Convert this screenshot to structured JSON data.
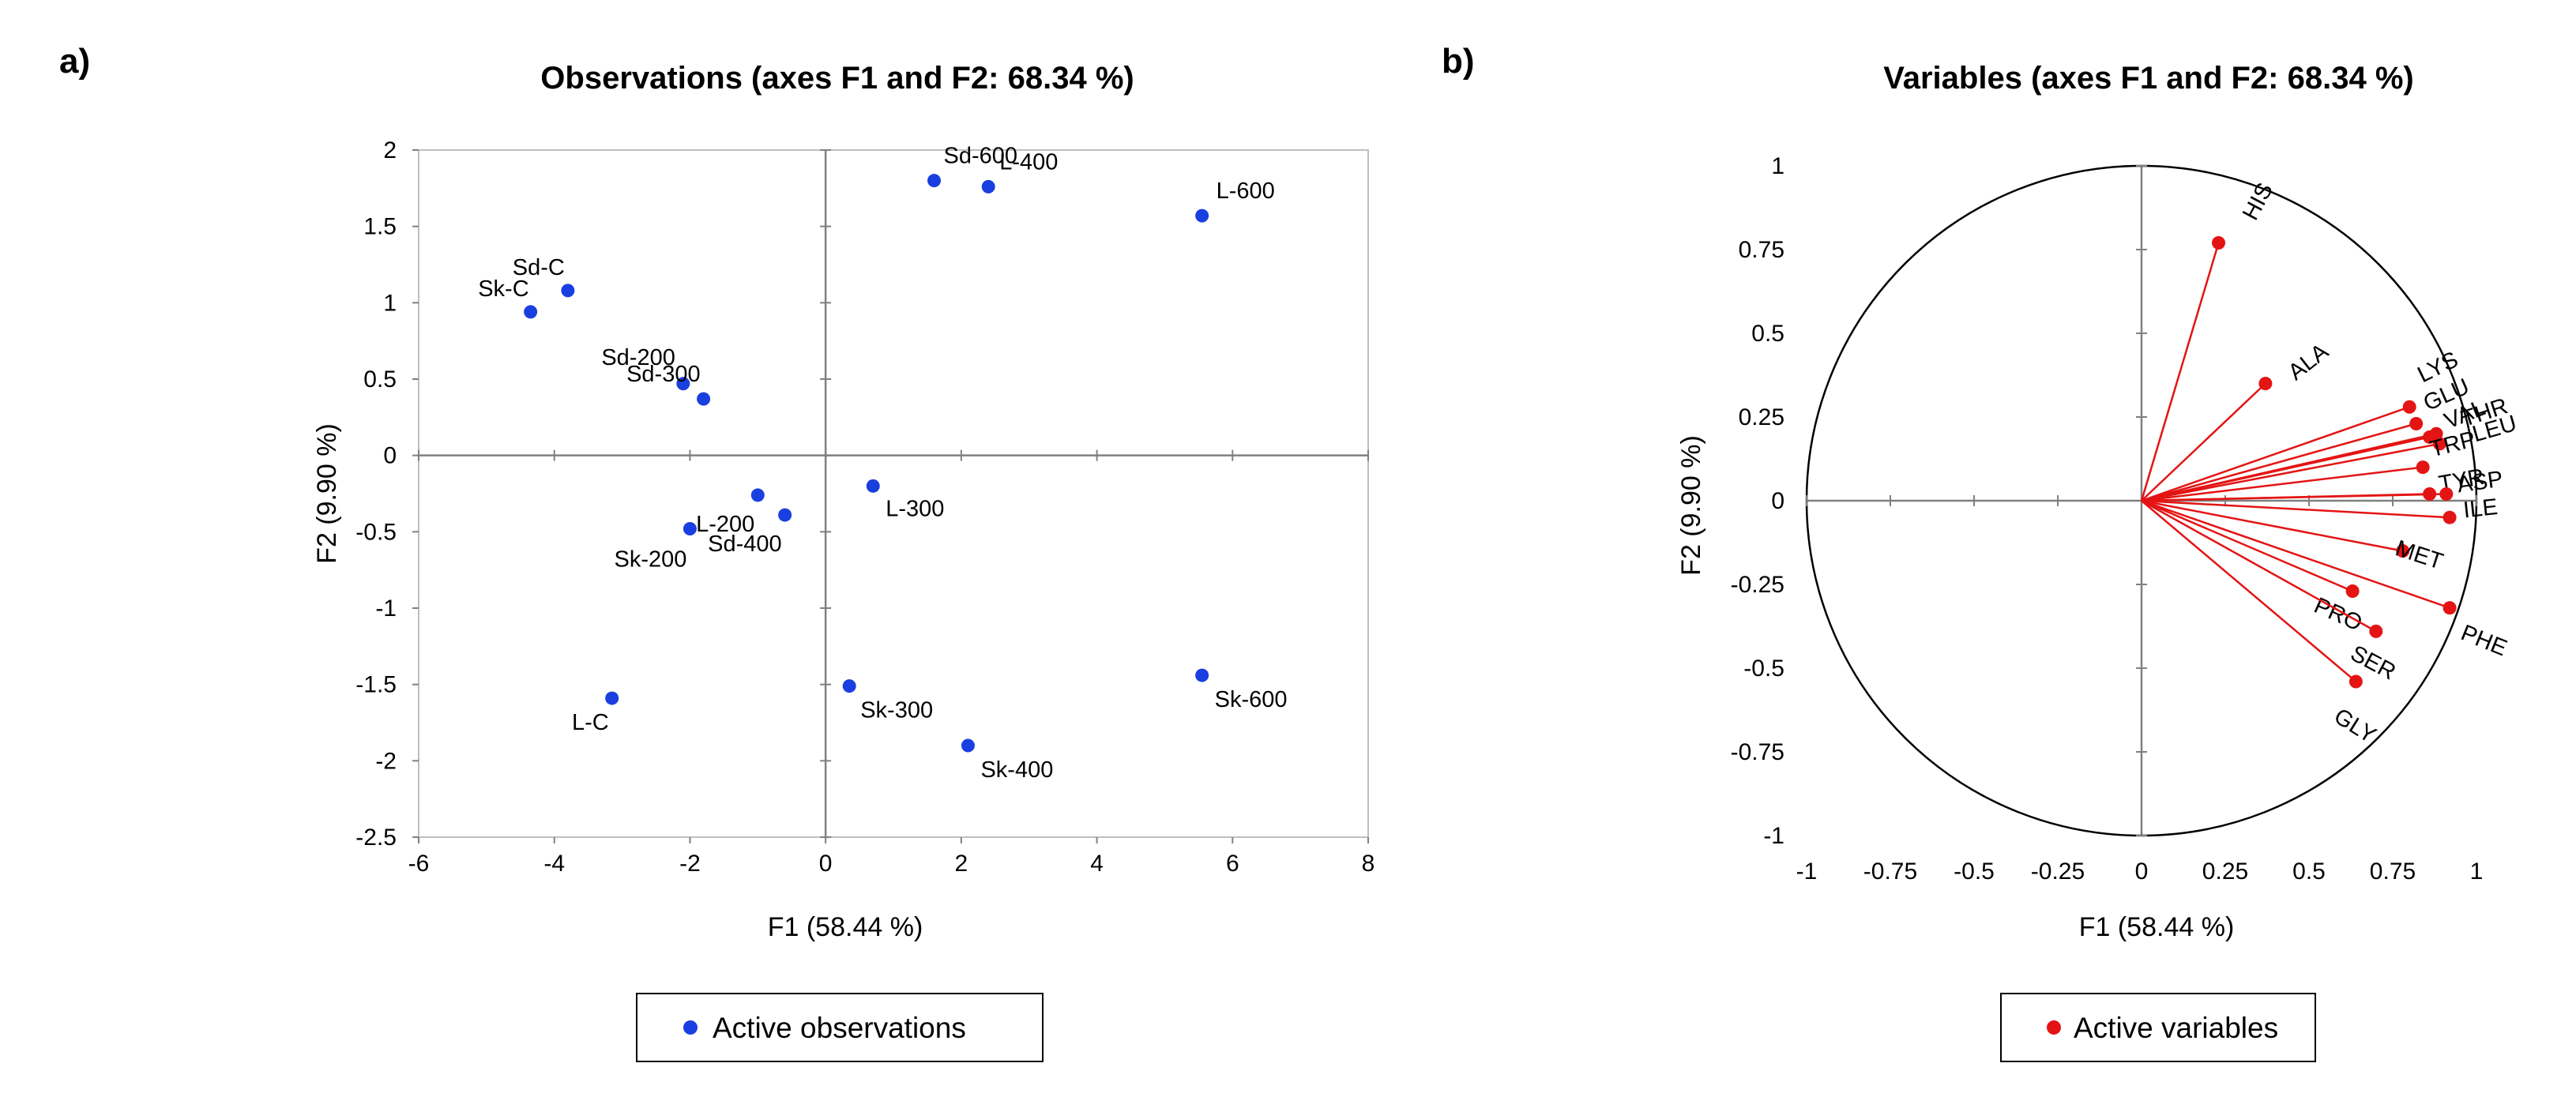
{
  "panels": {
    "a": {
      "label": "a)"
    },
    "b": {
      "label": "b)"
    }
  },
  "colors": {
    "observations": "#1a3fe0",
    "variables": "#e41414",
    "axis": "#808080",
    "frame": "#bfbfbf"
  },
  "chart_data": [
    {
      "type": "scatter",
      "title": "Observations (axes F1 and F2: 68.34 %)",
      "xlabel": "F1 (58.44  %)",
      "ylabel": "F2 (9.90 %)",
      "xlim": [
        -6,
        8
      ],
      "ylim": [
        -2.5,
        2
      ],
      "xticks": [
        -6,
        -4,
        -2,
        0,
        2,
        4,
        6,
        8
      ],
      "yticks": [
        2,
        1.5,
        1,
        0.5,
        0,
        -0.5,
        -1,
        -1.5,
        -2,
        -2.5
      ],
      "xtick_labels": [
        "-6",
        "-4",
        "-2",
        "0",
        "2",
        "4",
        "6",
        "8"
      ],
      "ytick_labels": [
        "2",
        "1.5",
        "1",
        "0.5",
        "0",
        "-0.5",
        "-1",
        "-1.5",
        "-2",
        "-2.5"
      ],
      "legend": "Active observations",
      "series": [
        {
          "name": "Active observations",
          "points": [
            {
              "label": "Sd-600",
              "x": 1.6,
              "y": 1.8
            },
            {
              "label": "L-400",
              "x": 2.4,
              "y": 1.76
            },
            {
              "label": "L-600",
              "x": 5.55,
              "y": 1.57
            },
            {
              "label": "Sd-C",
              "x": -3.8,
              "y": 1.08
            },
            {
              "label": "Sk-C",
              "x": -4.35,
              "y": 0.94
            },
            {
              "label": "Sd-200",
              "x": -2.1,
              "y": 0.47
            },
            {
              "label": "Sd-300",
              "x": -1.8,
              "y": 0.37
            },
            {
              "label": "L-200",
              "x": -1.0,
              "y": -0.26
            },
            {
              "label": "Sd-400",
              "x": -0.6,
              "y": -0.39
            },
            {
              "label": "Sk-200",
              "x": -2.0,
              "y": -0.48
            },
            {
              "label": "L-300",
              "x": 0.7,
              "y": -0.2
            },
            {
              "label": "L-C",
              "x": -3.15,
              "y": -1.59
            },
            {
              "label": "Sk-300",
              "x": 0.35,
              "y": -1.51
            },
            {
              "label": "Sk-400",
              "x": 2.1,
              "y": -1.9
            },
            {
              "label": "Sk-600",
              "x": 5.55,
              "y": -1.44
            }
          ]
        }
      ]
    },
    {
      "type": "scatter",
      "title": "Variables (axes F1 and F2: 68.34 %)",
      "xlabel": "F1 (58.44  %)",
      "ylabel": "F2 (9.90 %)",
      "xlim": [
        -1,
        1
      ],
      "ylim": [
        -1,
        1
      ],
      "xticks": [
        -1,
        -0.75,
        -0.5,
        -0.25,
        0,
        0.25,
        0.5,
        0.75,
        1
      ],
      "yticks": [
        1,
        0.75,
        0.5,
        0.25,
        0,
        -0.25,
        -0.5,
        -0.75,
        -1
      ],
      "xtick_labels": [
        "-1",
        "-0.75",
        "-0.5",
        "-0.25",
        "0",
        "0.25",
        "0.5",
        "0.75",
        "1"
      ],
      "ytick_labels": [
        "1",
        "0.75",
        "0.5",
        "0.25",
        "0",
        "-0.25",
        "-0.5",
        "-0.75",
        "-1"
      ],
      "correlation_circle": true,
      "legend": "Active variables",
      "series": [
        {
          "name": "Active variables",
          "points": [
            {
              "label": "HIS",
              "x": 0.23,
              "y": 0.77
            },
            {
              "label": "ALA",
              "x": 0.37,
              "y": 0.35
            },
            {
              "label": "LYS",
              "x": 0.8,
              "y": 0.28
            },
            {
              "label": "GLU",
              "x": 0.82,
              "y": 0.23
            },
            {
              "label": "VAL",
              "x": 0.86,
              "y": 0.19
            },
            {
              "label": "THR",
              "x": 0.88,
              "y": 0.2
            },
            {
              "label": "LEU",
              "x": 0.89,
              "y": 0.17
            },
            {
              "label": "TRP",
              "x": 0.84,
              "y": 0.1
            },
            {
              "label": "TYR",
              "x": 0.86,
              "y": 0.02
            },
            {
              "label": "ASP",
              "x": 0.91,
              "y": 0.02
            },
            {
              "label": "ILE",
              "x": 0.92,
              "y": -0.05
            },
            {
              "label": "MET",
              "x": 0.78,
              "y": -0.15
            },
            {
              "label": "PHE",
              "x": 0.92,
              "y": -0.32
            },
            {
              "label": "PRO",
              "x": 0.63,
              "y": -0.27
            },
            {
              "label": "SER",
              "x": 0.7,
              "y": -0.39
            },
            {
              "label": "GLY",
              "x": 0.64,
              "y": -0.54
            }
          ]
        }
      ]
    }
  ]
}
